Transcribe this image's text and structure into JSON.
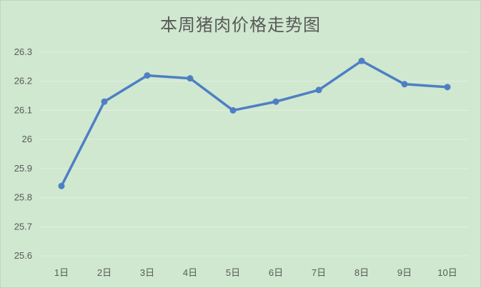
{
  "chart_data": {
    "type": "line",
    "title": "本周猪肉价格走势图",
    "categories": [
      "1日",
      "2日",
      "3日",
      "4日",
      "5日",
      "6日",
      "7日",
      "8日",
      "9日",
      "10日"
    ],
    "series": [
      {
        "values": [
          25.84,
          26.13,
          26.22,
          26.21,
          26.1,
          26.13,
          26.17,
          26.27,
          26.19,
          26.18
        ]
      }
    ],
    "y_ticks": [
      "25.6",
      "25.7",
      "25.8",
      "25.9",
      "26",
      "26.1",
      "26.2",
      "26.3"
    ],
    "ylim": [
      25.6,
      26.3
    ],
    "grid": true,
    "legend": "none",
    "colors": {
      "background": "#cfe8cf",
      "line": "#4e7fc4",
      "grid": "#e2efe2",
      "text": "#595959"
    }
  }
}
